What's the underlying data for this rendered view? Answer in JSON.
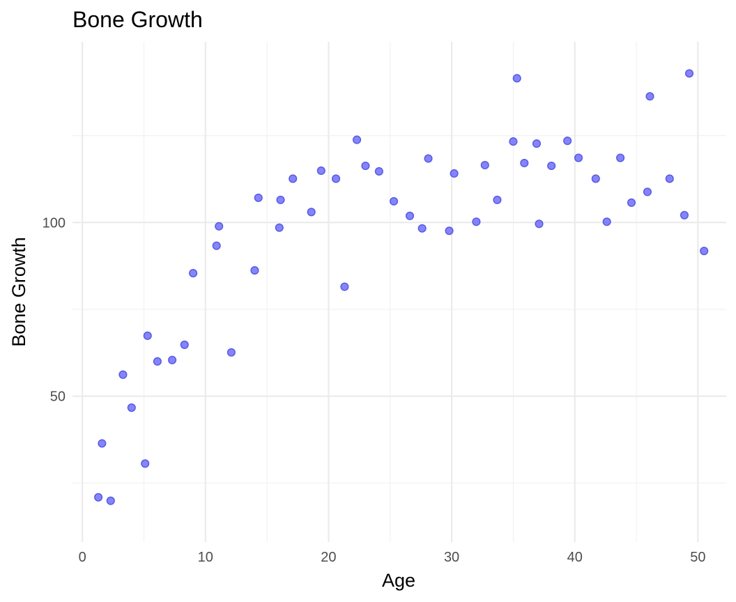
{
  "chart_data": {
    "type": "scatter",
    "title": "Bone Growth",
    "xlabel": "Age",
    "ylabel": "Bone Growth",
    "xlim": [
      -0.8,
      52.3
    ],
    "ylim": [
      8,
      152
    ],
    "x_ticks": [
      0,
      10,
      20,
      30,
      40,
      50
    ],
    "x_minor_ticks": [
      5,
      15,
      25,
      35,
      45
    ],
    "y_ticks": [
      50,
      100
    ],
    "y_minor_ticks": [
      25,
      75,
      125
    ],
    "grid": true,
    "legend": "none",
    "point_color": "#6a5acd",
    "point_fill": "rgba(85, 85, 255, 0.72)",
    "point_stroke": "#5a5adf",
    "x": [
      1.3,
      1.6,
      2.3,
      3.3,
      4.0,
      5.1,
      5.3,
      6.1,
      7.3,
      8.3,
      9.0,
      10.9,
      11.1,
      12.1,
      14.0,
      14.3,
      16.0,
      16.1,
      17.1,
      18.6,
      19.4,
      20.6,
      21.3,
      22.3,
      23.0,
      24.1,
      25.3,
      26.6,
      27.6,
      28.1,
      29.8,
      30.2,
      32.0,
      32.7,
      33.7,
      35.0,
      35.3,
      35.9,
      36.9,
      37.1,
      38.1,
      39.4,
      40.3,
      41.7,
      42.6,
      43.7,
      44.6,
      45.9,
      46.1,
      47.7,
      48.9,
      49.3,
      50.5
    ],
    "y": [
      20.9,
      36.4,
      19.9,
      56.2,
      46.7,
      30.6,
      67.4,
      60.0,
      60.4,
      64.8,
      85.4,
      93.3,
      98.9,
      62.6,
      86.2,
      107.1,
      98.5,
      106.5,
      112.6,
      103.0,
      114.9,
      112.6,
      81.5,
      123.8,
      116.3,
      114.7,
      106.1,
      101.9,
      98.3,
      118.4,
      97.6,
      114.1,
      100.2,
      116.5,
      106.5,
      123.3,
      141.5,
      117.1,
      122.7,
      99.6,
      116.3,
      123.5,
      118.6,
      112.6,
      100.2,
      118.6,
      105.7,
      108.8,
      136.3,
      112.6,
      102.1,
      142.9,
      91.8
    ]
  }
}
